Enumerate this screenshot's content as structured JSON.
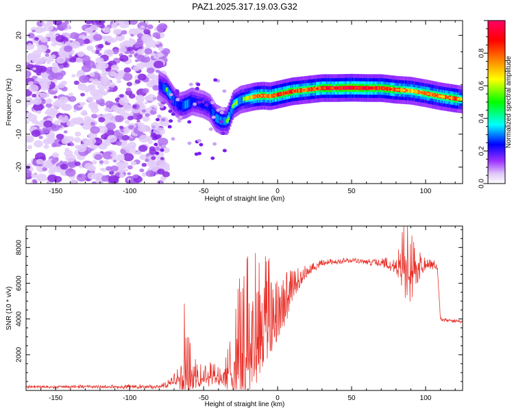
{
  "figure_title": "PAZ1.2025.317.19.03.G32",
  "chart_data": [
    {
      "type": "heatmap",
      "title": "PAZ1.2025.317.19.03.G32",
      "xlabel": "Height of straight line (km)",
      "ylabel": "Frequency (Hz)",
      "xlim": [
        -170,
        125
      ],
      "ylim": [
        -25,
        24.5
      ],
      "x_ticks": [
        -150,
        -100,
        -50,
        0,
        50,
        100
      ],
      "y_ticks": [
        -20,
        -10,
        0,
        10,
        20
      ],
      "colorbar": {
        "label": "Normalized spectral amplitude",
        "range": [
          0,
          1
        ],
        "ticks": [
          0.0,
          0.2,
          0.4,
          0.6,
          0.8
        ],
        "tick_labels": [
          "0.0",
          "0.2",
          "0.4",
          "0.6",
          "0.8"
        ],
        "colormap": [
          "#ffffff",
          "#e0c8f8",
          "#9b30ff",
          "#0000ff",
          "#00ffff",
          "#00ff00",
          "#ffff00",
          "#ff8000",
          "#ff0000",
          "#ff0066"
        ]
      },
      "ridge": {
        "x": [
          -80,
          -75,
          -70,
          -66,
          -62,
          -58,
          -54,
          -50,
          -46,
          -42,
          -38,
          -34,
          -30,
          -25,
          -20,
          -15,
          -10,
          -5,
          0,
          10,
          20,
          30,
          40,
          50,
          60,
          70,
          80,
          90,
          100,
          110,
          120,
          125
        ],
        "freq": [
          5,
          3.5,
          0,
          -1.5,
          -1,
          0,
          -0.5,
          -1,
          -2,
          -5,
          -6,
          -6,
          -1,
          0.5,
          1,
          1.5,
          1.7,
          1.5,
          2,
          3,
          3.5,
          4,
          4,
          4.1,
          4,
          4,
          3.5,
          3.2,
          2.4,
          1.5,
          0.8,
          0.5
        ],
        "amplitude": [
          0.3,
          0.5,
          0.45,
          0.35,
          0.5,
          0.4,
          0.3,
          0.35,
          0.35,
          0.45,
          0.5,
          0.5,
          0.55,
          0.5,
          0.6,
          0.75,
          0.8,
          0.75,
          0.85,
          0.85,
          0.75,
          0.85,
          0.9,
          0.95,
          0.9,
          0.85,
          0.8,
          0.7,
          0.75,
          0.75,
          0.8,
          0.6
        ]
      },
      "noise_region": [
        -170,
        -75
      ]
    },
    {
      "type": "line",
      "xlabel": "Height of straight line (km)",
      "ylabel": "SNR (10 * v/v)",
      "xlim": [
        -170,
        125
      ],
      "ylim": [
        0,
        9200
      ],
      "x_ticks": [
        -150,
        -100,
        -50,
        0,
        50,
        100
      ],
      "y_ticks": [
        2000,
        4000,
        6000,
        8000
      ],
      "color": "#e8312a",
      "envelope": {
        "x": [
          -170,
          -80,
          -75,
          -70,
          -66,
          -63,
          -60,
          -57,
          -54,
          -50,
          -45,
          -40,
          -36,
          -33,
          -30,
          -25,
          -20,
          -15,
          -10,
          -5,
          0,
          5,
          10,
          15,
          20,
          30,
          40,
          50,
          60,
          70,
          80,
          85,
          90,
          95,
          100,
          105,
          108,
          110,
          115,
          125
        ],
        "baseline": [
          200,
          200,
          300,
          500,
          900,
          1200,
          900,
          800,
          600,
          700,
          800,
          700,
          600,
          900,
          1500,
          2000,
          2500,
          3000,
          3500,
          4000,
          4300,
          4800,
          5500,
          6200,
          6600,
          7100,
          7200,
          7250,
          7200,
          7100,
          6900,
          6800,
          6600,
          6700,
          7000,
          7000,
          6900,
          4000,
          3900,
          3850
        ],
        "spike": [
          50,
          100,
          200,
          600,
          2000,
          4600,
          3000,
          1200,
          900,
          700,
          900,
          800,
          700,
          2000,
          3500,
          4800,
          5500,
          5000,
          4500,
          3500,
          2500,
          2000,
          1200,
          800,
          400,
          200,
          150,
          150,
          200,
          300,
          500,
          2500,
          3000,
          1200,
          400,
          300,
          300,
          150,
          100,
          100
        ]
      }
    }
  ]
}
